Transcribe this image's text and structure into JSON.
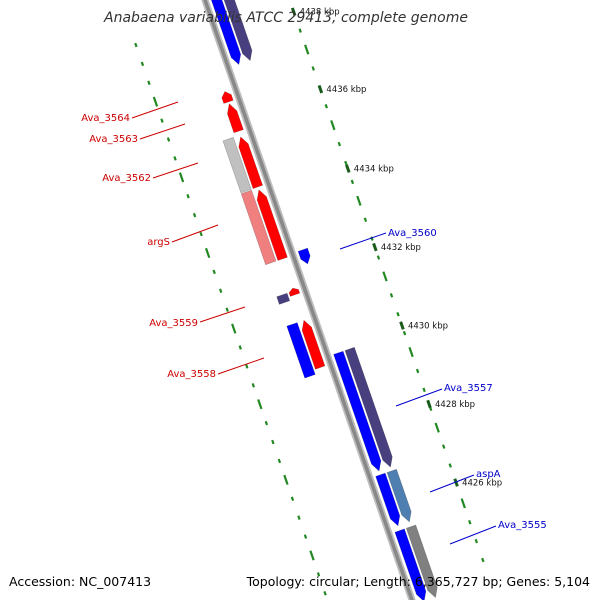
{
  "title": "Anabaena variabilis ATCC 29413, complete genome",
  "footer": {
    "accession": "Accession: NC_007413",
    "topology": "Topology: circular; Length: 6,365,727 bp; Genes: 5,104"
  },
  "ticks": [
    {
      "label": "4438 kbp"
    },
    {
      "label": "4436 kbp"
    },
    {
      "label": "4434 kbp"
    },
    {
      "label": "4432 kbp"
    },
    {
      "label": "4430 kbp"
    },
    {
      "label": "4428 kbp"
    },
    {
      "label": "4426 kbp"
    }
  ],
  "labels": {
    "left": [
      "Ava_3564",
      "Ava_3563",
      "Ava_3562",
      "argS",
      "Ava_3559",
      "Ava_3558"
    ],
    "right": [
      "Ava_3560",
      "Ava_3557",
      "aspA",
      "Ava_3555"
    ]
  },
  "colors": {
    "reverse_strand": "#ff0000",
    "forward_strand": "#0000ff",
    "backbone": "#888888",
    "tick": "#228822",
    "left_label": "#cc0000",
    "right_label": "#0000cc",
    "cds_dark": "#48407e",
    "cds_steel": "#4e7fb0",
    "cds_gray": "#808080",
    "rna_light_red": "#f08080",
    "rna_light_gray": "#c0c0c0"
  }
}
